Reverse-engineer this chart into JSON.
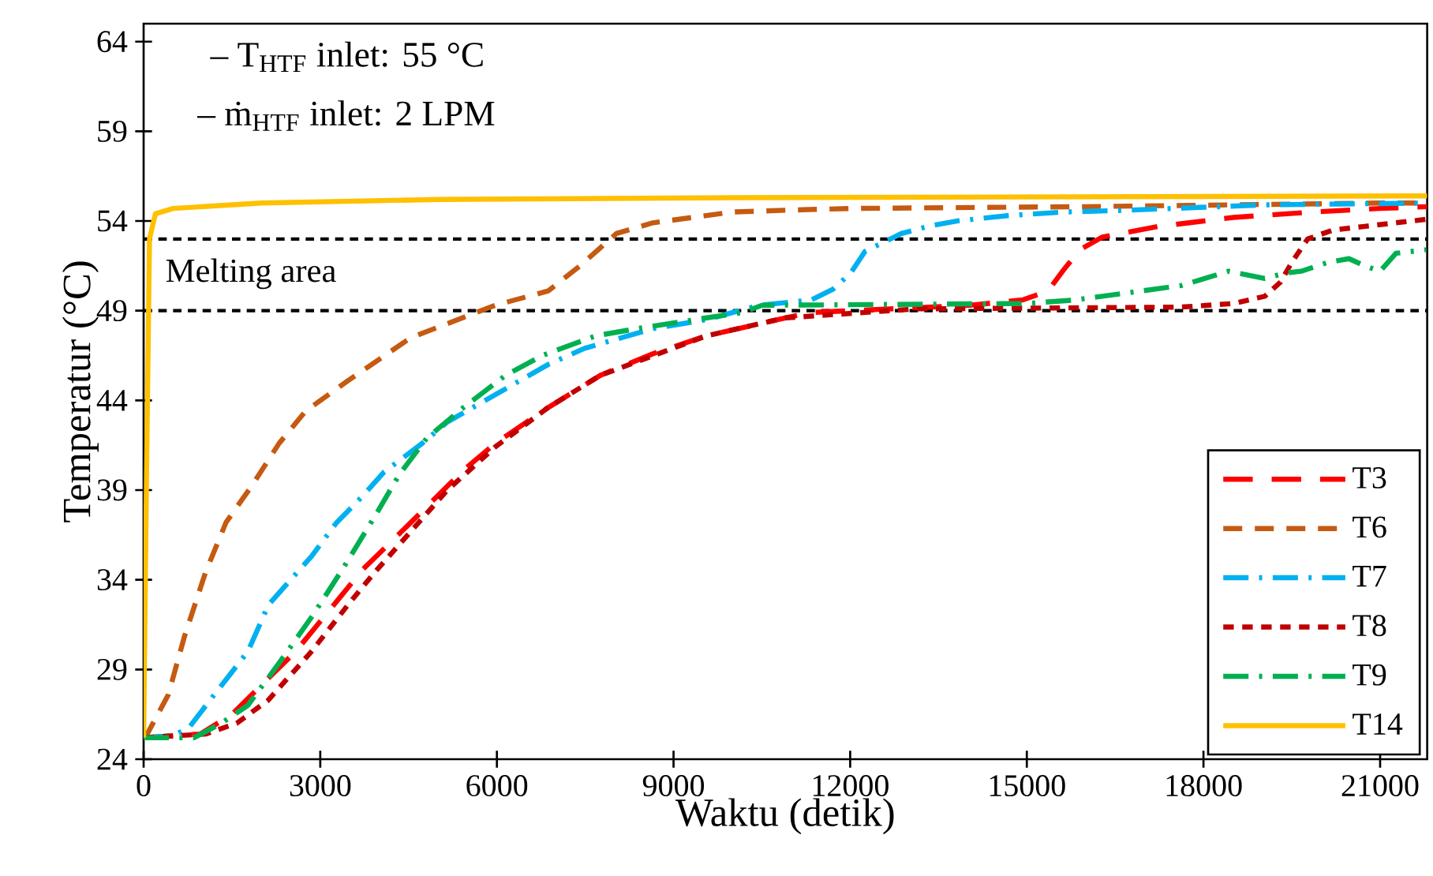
{
  "chart_data": {
    "type": "line",
    "xlabel": "Waktu (detik)",
    "ylabel": "Temperatur (°C)",
    "xlim": [
      0,
      21800
    ],
    "ylim": [
      24,
      65
    ],
    "xticks": [
      0,
      3000,
      6000,
      9000,
      12000,
      15000,
      18000,
      21000
    ],
    "yticks": [
      24,
      29,
      34,
      39,
      44,
      49,
      54,
      59,
      64
    ],
    "grid": false,
    "legend": "bottom right",
    "marker": "none",
    "annotations": [
      "– T$_{HTF}$ inlet: 55 °C",
      "– ṁ$_{HTF}$ inlet: 2 LPM",
      "Melting area"
    ],
    "ref_lines": [
      {
        "axis": "y",
        "value": 49,
        "color": "#000000",
        "line_style": "dashed"
      },
      {
        "axis": "y",
        "value": 53,
        "color": "#000000",
        "line_style": "dashed"
      }
    ],
    "series": [
      {
        "name": "T3",
        "color": "#ff0000",
        "line_style": "longdashed",
        "x": [
          0,
          960,
          1500,
          1930,
          2580,
          2930,
          3730,
          4540,
          5000,
          5430,
          5970,
          6870,
          7760,
          8650,
          9560,
          10900,
          11340,
          14020,
          14930,
          15360,
          15630,
          15900,
          16280,
          17240,
          18510,
          19850,
          21000,
          21800
        ],
        "values": [
          25.2,
          25.4,
          26.5,
          27.9,
          30,
          31.4,
          34.6,
          37.2,
          38.7,
          40.1,
          41.6,
          43.6,
          45.4,
          46.6,
          47.6,
          48.6,
          48.9,
          49.3,
          49.6,
          50.1,
          51.3,
          52.4,
          53.1,
          53.7,
          54.2,
          54.5,
          54.7,
          54.8
        ]
      },
      {
        "name": "T6",
        "color": "#c55a11",
        "line_style": "dashed",
        "x": [
          0,
          45,
          420,
          690,
          1050,
          1400,
          1850,
          2300,
          2750,
          3470,
          4540,
          5970,
          6870,
          7410,
          8030,
          8650,
          9990,
          10900,
          12000,
          16000,
          21000,
          21800
        ],
        "values": [
          25.2,
          25.3,
          27.6,
          30.8,
          34.4,
          37.2,
          39.3,
          41.6,
          43.4,
          45.1,
          47.5,
          49.3,
          50.1,
          51.5,
          53.3,
          53.9,
          54.5,
          54.6,
          54.7,
          54.8,
          55.0,
          55.0
        ]
      },
      {
        "name": "T7",
        "color": "#00b0f0",
        "line_style": "dashdot",
        "x": [
          0,
          500,
          780,
          1130,
          1770,
          2120,
          2470,
          2850,
          3280,
          3730,
          4080,
          4730,
          5160,
          6070,
          6870,
          7490,
          8650,
          9560,
          10450,
          11340,
          11710,
          12010,
          12250,
          12870,
          13320,
          13810,
          14670,
          15630,
          16700,
          19040,
          21800
        ],
        "values": [
          25.2,
          25.3,
          25.8,
          27.3,
          30,
          32.6,
          33.9,
          35.3,
          37.2,
          38.7,
          40,
          41.6,
          42.8,
          44.5,
          46,
          46.9,
          48,
          48.5,
          49.3,
          49.6,
          50.2,
          51.1,
          52.3,
          53.3,
          53.7,
          54,
          54.3,
          54.5,
          54.6,
          54.9,
          55.0
        ]
      },
      {
        "name": "T8",
        "color": "#c00000",
        "line_style": "shortdashed",
        "x": [
          0,
          1050,
          1580,
          2120,
          2850,
          3470,
          3920,
          4540,
          5160,
          5970,
          6870,
          7760,
          9560,
          10900,
          13130,
          17620,
          18510,
          19040,
          19310,
          19500,
          19770,
          20200,
          20740,
          21800
        ],
        "values": [
          25.2,
          25.4,
          26,
          27.3,
          30,
          32.6,
          34.4,
          36.7,
          39,
          41.4,
          43.6,
          45.4,
          47.6,
          48.6,
          49.1,
          49.2,
          49.4,
          49.8,
          50.6,
          51.7,
          53.0,
          53.5,
          53.7,
          54.1
        ]
      },
      {
        "name": "T9",
        "color": "#00b050",
        "line_style": "dashdot",
        "x": [
          0,
          860,
          1320,
          1770,
          2310,
          2870,
          3380,
          3920,
          4350,
          4810,
          5430,
          6150,
          6770,
          7680,
          8380,
          9560,
          10180,
          10500,
          15000,
          15820,
          17620,
          18430,
          19040,
          19390,
          19660,
          20120,
          20470,
          20740,
          21000,
          21270,
          21780
        ],
        "values": [
          25.2,
          25.2,
          26,
          27,
          29.4,
          32,
          34.6,
          37.5,
          39.9,
          41.9,
          43.6,
          45.4,
          46.5,
          47.6,
          48,
          48.6,
          48.9,
          49.3,
          49.4,
          49.6,
          50.4,
          51.2,
          50.8,
          51.1,
          51.2,
          51.7,
          51.9,
          51.5,
          51.2,
          52.2,
          52.4
        ]
      },
      {
        "name": "T14",
        "color": "#ffc000",
        "line_style": "solid",
        "x": [
          0,
          50,
          100,
          200,
          500,
          2000,
          5000,
          10000,
          21800
        ],
        "values": [
          25.2,
          40,
          53,
          54.4,
          54.7,
          55.0,
          55.2,
          55.3,
          55.4
        ]
      }
    ]
  }
}
